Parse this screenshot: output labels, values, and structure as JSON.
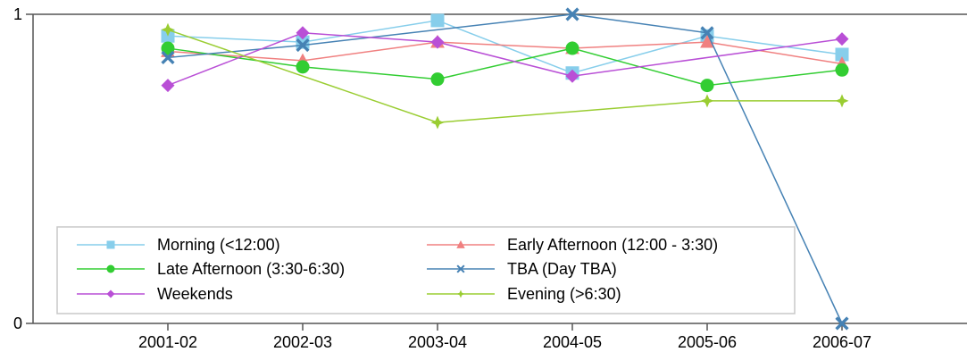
{
  "chart_data": {
    "type": "line",
    "x": [
      "2001-02",
      "2002-03",
      "2003-04",
      "2004-05",
      "2005-06",
      "2006-07"
    ],
    "ylim": [
      0,
      1
    ],
    "y_ticks": [
      "0",
      "1"
    ],
    "grid": false,
    "legend_position": "bottom-left",
    "series": [
      {
        "name": "Morning (<12:00)",
        "color": "#87ceeb",
        "marker": "square",
        "values": [
          0.93,
          0.91,
          0.98,
          0.81,
          0.93,
          0.87
        ]
      },
      {
        "name": "Early Afternoon (12:00 - 3:30)",
        "color": "#f08080",
        "marker": "triangle",
        "values": [
          0.88,
          0.85,
          0.91,
          0.89,
          0.91,
          0.84
        ]
      },
      {
        "name": "Late Afternoon (3:30-6:30)",
        "color": "#32cd32",
        "marker": "circle",
        "values": [
          0.89,
          0.83,
          0.79,
          0.89,
          0.77,
          0.82
        ]
      },
      {
        "name": "TBA (Day TBA)",
        "color": "#4682b4",
        "marker": "x",
        "values": [
          0.86,
          0.9,
          null,
          1.0,
          0.94,
          0.0
        ]
      },
      {
        "name": "Weekends",
        "color": "#b94fd6",
        "marker": "diamond",
        "values": [
          0.77,
          0.94,
          0.91,
          0.8,
          null,
          0.92
        ]
      },
      {
        "name": "Evening (>6:30)",
        "color": "#9acd32",
        "marker": "plus",
        "values": [
          0.95,
          null,
          0.65,
          null,
          0.72,
          0.72
        ]
      }
    ]
  }
}
